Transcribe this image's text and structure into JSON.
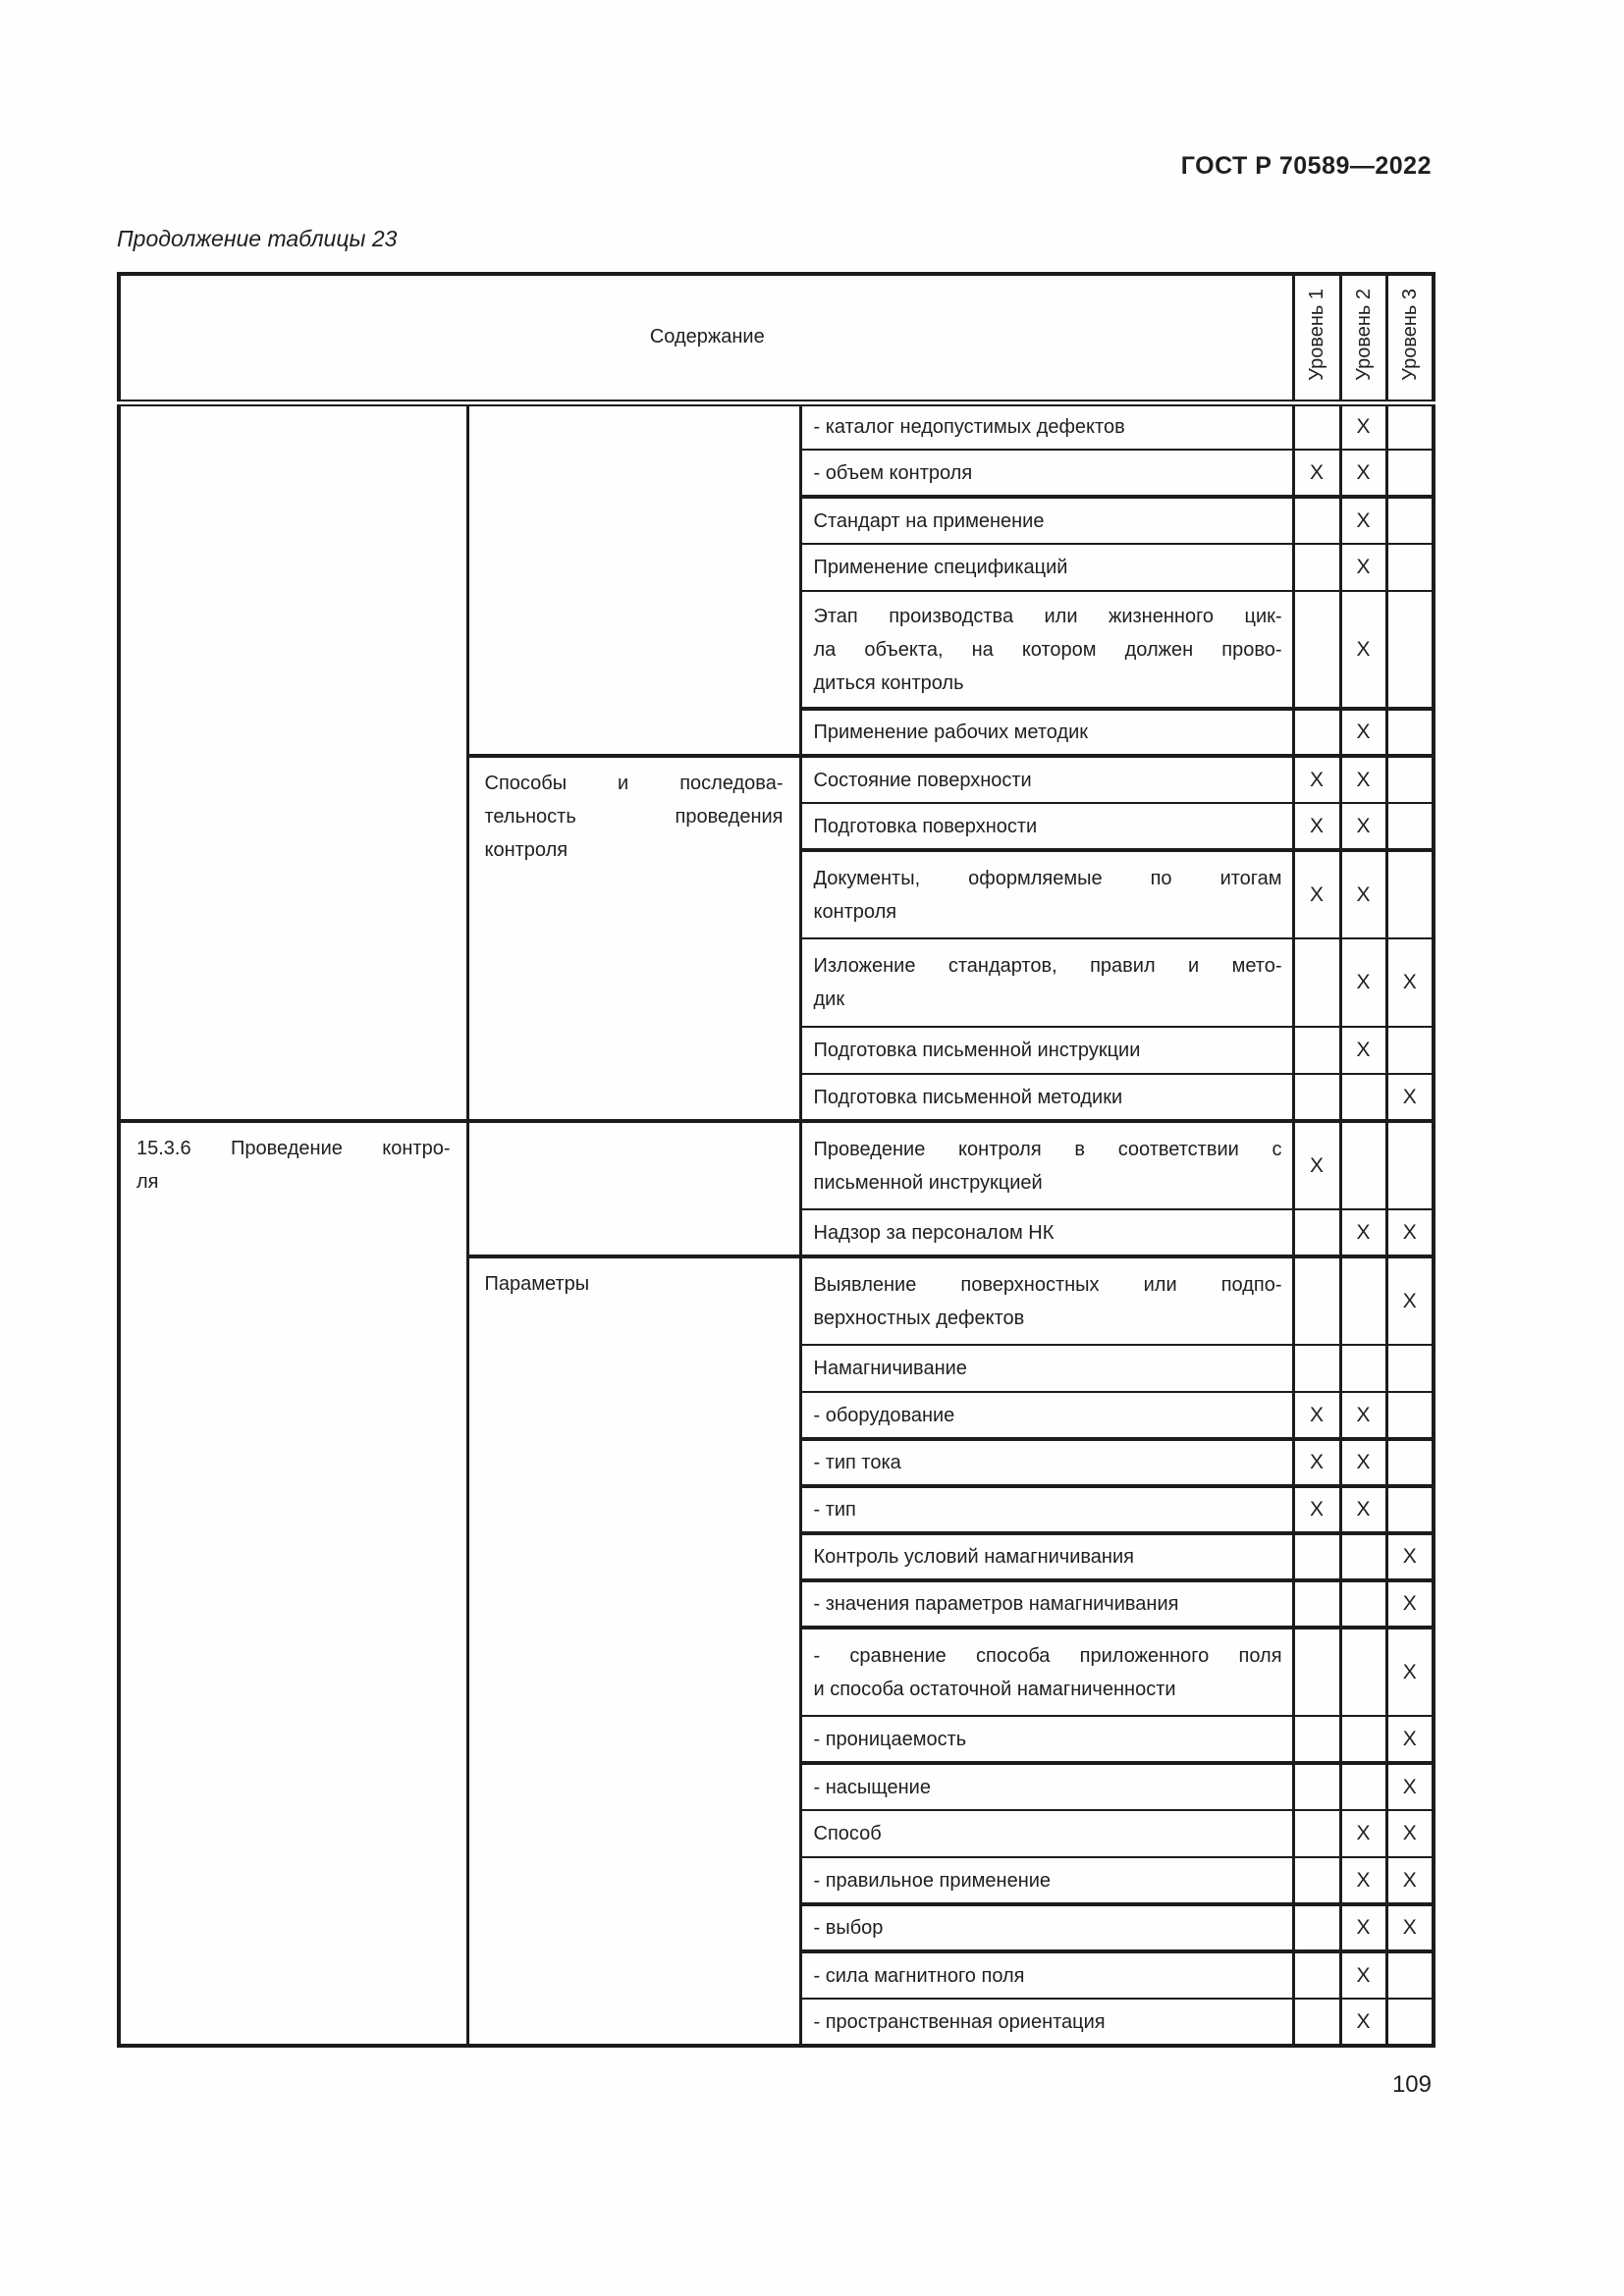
{
  "page": {
    "header_right": "ГОСТ Р 70589—2022",
    "table_caption": "Продолжение таблицы 23",
    "page_number": "109",
    "ink_color": "#1f1f1f",
    "paper_color": "#fefefe"
  },
  "table": {
    "header": {
      "content_label": "Содержание",
      "level_labels": [
        "Уровень 1",
        "Уровень 2",
        "Уровень 3"
      ]
    },
    "col1_cells": {
      "section": [
        "15.3.6 Проведение контро-",
        "ля"
      ]
    },
    "col2_cells": {
      "methods": [
        "Способы и последова-",
        "тельность проведения",
        "контроля"
      ],
      "parameters": "Параметры"
    },
    "rows": [
      {
        "text": "- каталог недопустимых дефектов",
        "l1": "",
        "l2": "X",
        "l3": ""
      },
      {
        "text": "- объем контроля",
        "l1": "X",
        "l2": "X",
        "l3": ""
      },
      {
        "text": "Стандарт на применение",
        "l1": "",
        "l2": "X",
        "l3": ""
      },
      {
        "text": "Применение спецификаций",
        "l1": "",
        "l2": "X",
        "l3": ""
      },
      {
        "text": [
          "Этап производства или жизненного цик-",
          "ла объекта, на котором должен прово-",
          "диться контроль"
        ],
        "l1": "",
        "l2": "X",
        "l3": ""
      },
      {
        "text": "Применение рабочих методик",
        "l1": "",
        "l2": "X",
        "l3": ""
      },
      {
        "text": "Состояние поверхности",
        "l1": "X",
        "l2": "X",
        "l3": ""
      },
      {
        "text": "Подготовка поверхности",
        "l1": "X",
        "l2": "X",
        "l3": ""
      },
      {
        "text": [
          "Документы, оформляемые по итогам",
          "контроля"
        ],
        "l1": "X",
        "l2": "X",
        "l3": ""
      },
      {
        "text": [
          "Изложение стандартов, правил и мето-",
          "дик"
        ],
        "l1": "",
        "l2": "X",
        "l3": "X"
      },
      {
        "text": "Подготовка письменной инструкции",
        "l1": "",
        "l2": "X",
        "l3": ""
      },
      {
        "text": "Подготовка письменной методики",
        "l1": "",
        "l2": "",
        "l3": "X"
      },
      {
        "text": [
          "Проведение контроля в соответствии с",
          "письменной инструкцией"
        ],
        "l1": "X",
        "l2": "",
        "l3": ""
      },
      {
        "text": "Надзор за персоналом НК",
        "l1": "",
        "l2": "X",
        "l3": "X"
      },
      {
        "text": [
          "Выявление поверхностных или подпо-",
          "верхностных дефектов"
        ],
        "l1": "",
        "l2": "",
        "l3": "X"
      },
      {
        "text": "Намагничивание",
        "l1": "",
        "l2": "",
        "l3": ""
      },
      {
        "text": "- оборудование",
        "l1": "X",
        "l2": "X",
        "l3": ""
      },
      {
        "text": "- тип тока",
        "l1": "X",
        "l2": "X",
        "l3": ""
      },
      {
        "text": "- тип",
        "l1": "X",
        "l2": "X",
        "l3": ""
      },
      {
        "text": "Контроль условий намагничивания",
        "l1": "",
        "l2": "",
        "l3": "X"
      },
      {
        "text": "- значения параметров намагничивания",
        "l1": "",
        "l2": "",
        "l3": "X"
      },
      {
        "text": [
          "- сравнение способа приложенного поля",
          "и способа остаточной намагниченности"
        ],
        "l1": "",
        "l2": "",
        "l3": "X"
      },
      {
        "text": "- проницаемость",
        "l1": "",
        "l2": "",
        "l3": "X"
      },
      {
        "text": "- насыщение",
        "l1": "",
        "l2": "",
        "l3": "X"
      },
      {
        "text": "Способ",
        "l1": "",
        "l2": "X",
        "l3": "X"
      },
      {
        "text": "- правильное применение",
        "l1": "",
        "l2": "X",
        "l3": "X"
      },
      {
        "text": "- выбор",
        "l1": "",
        "l2": "X",
        "l3": "X"
      },
      {
        "text": "- сила магнитного поля",
        "l1": "",
        "l2": "X",
        "l3": ""
      },
      {
        "text": "- пространственная ориентация",
        "l1": "",
        "l2": "X",
        "l3": ""
      }
    ]
  }
}
